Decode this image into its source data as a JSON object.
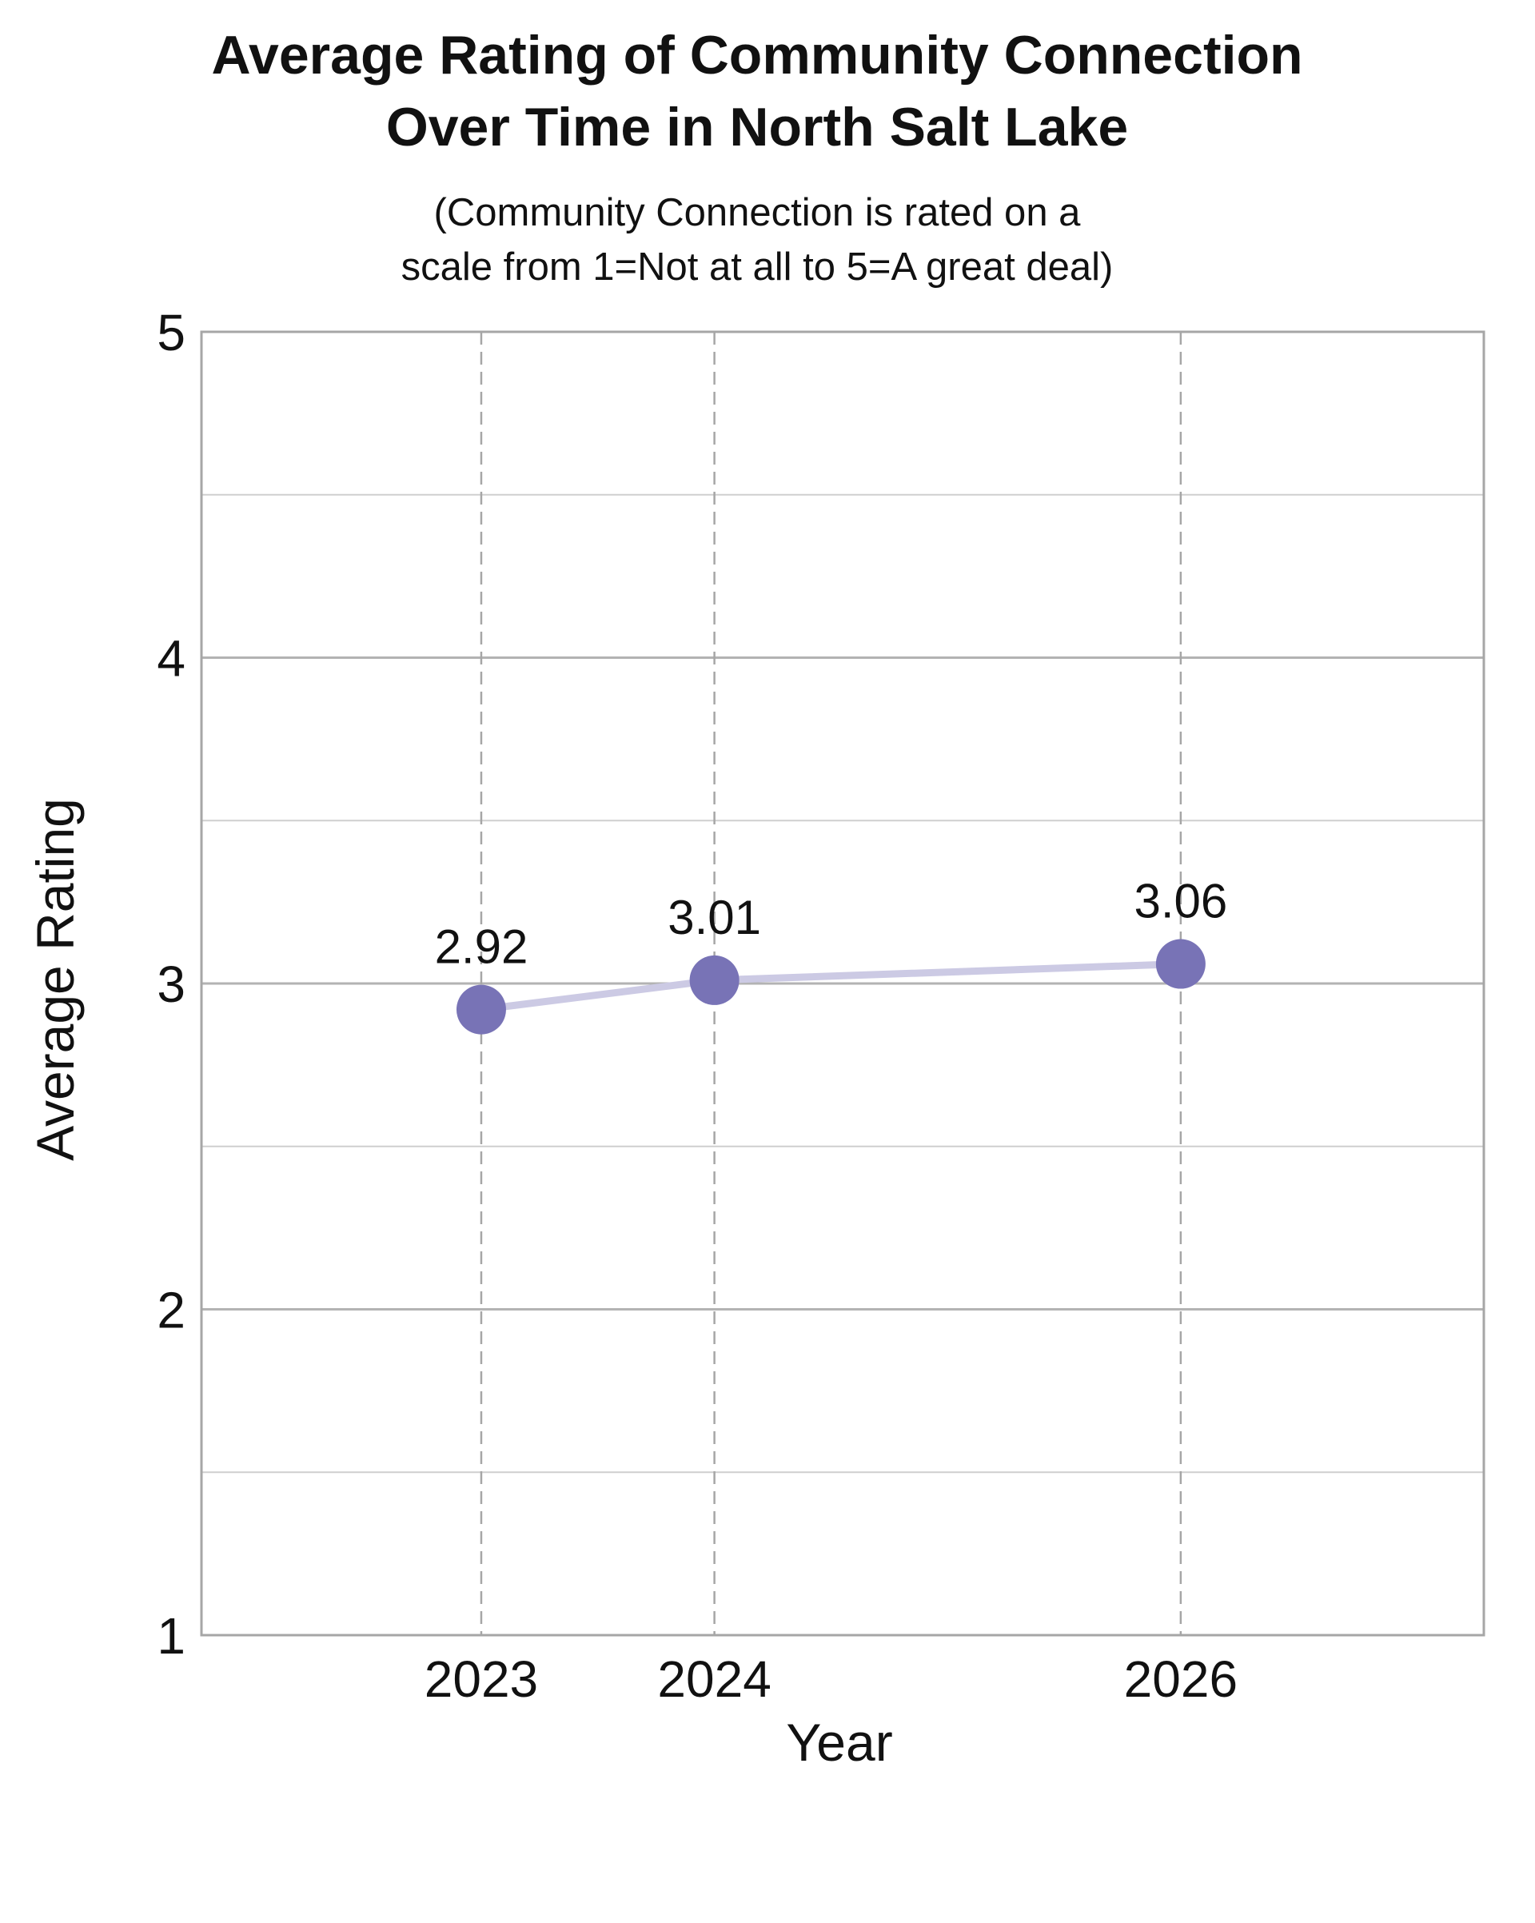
{
  "chart_data": {
    "type": "line",
    "title_lines": [
      "Average Rating of Community Connection",
      "Over Time in North Salt Lake"
    ],
    "subtitle_lines": [
      "(Community Connection is rated on a",
      "scale from 1=Not at all to 5=A great deal)"
    ],
    "xlabel": "Year",
    "ylabel": "Average Rating",
    "x": [
      2023,
      2024,
      2026
    ],
    "x_tick_labels": [
      "2023",
      "2024",
      "2026"
    ],
    "series": [
      {
        "values": [
          2.92,
          3.01,
          3.06
        ],
        "data_labels": [
          "2.92",
          "3.01",
          "3.06"
        ]
      }
    ],
    "xlim": [
      2021.8,
      2027.3
    ],
    "ylim": [
      1,
      5
    ],
    "y_ticks": [
      1,
      2,
      3,
      4,
      5
    ],
    "y_tick_labels": [
      "1",
      "2",
      "3",
      "4",
      "5"
    ],
    "y_minor_ticks": [
      1.5,
      2.5,
      3.5,
      4.5
    ],
    "grid": true,
    "colors": {
      "marker": "#7873b6",
      "line": "#cccae4",
      "axis": "#a6a6a6",
      "grid_major": "#b3b3b3",
      "grid_minor": "#cfcfcf",
      "vertical_grid": "#a6a6a6"
    }
  }
}
